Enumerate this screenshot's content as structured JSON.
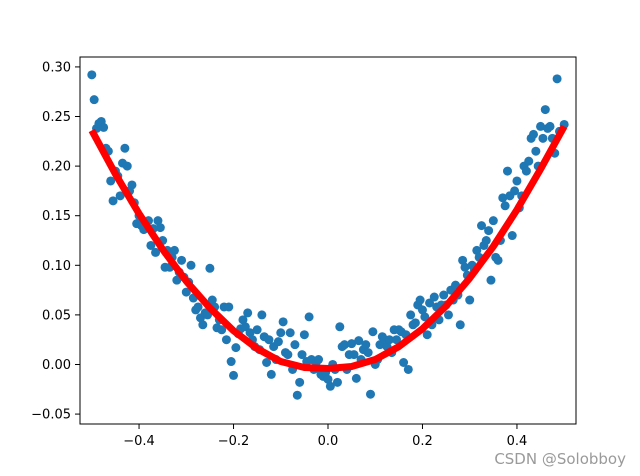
{
  "chart_data": {
    "type": "scatter",
    "title": "",
    "xlabel": "",
    "ylabel": "",
    "xlim": [
      -0.525,
      0.525
    ],
    "ylim": [
      -0.06,
      0.31
    ],
    "grid": false,
    "x_ticks": [
      -0.4,
      -0.2,
      0.0,
      0.2,
      0.4
    ],
    "x_tick_labels": [
      "−0.4",
      "−0.2",
      "0.0",
      "0.2",
      "0.4"
    ],
    "y_ticks": [
      -0.05,
      0.0,
      0.05,
      0.1,
      0.15,
      0.2,
      0.25,
      0.3
    ],
    "y_tick_labels": [
      "−0.05",
      "0.00",
      "0.05",
      "0.10",
      "0.15",
      "0.20",
      "0.25",
      "0.30"
    ],
    "series": [
      {
        "kind": "scatter",
        "color": "#1f77b4",
        "points": [
          [
            -0.5,
            0.292
          ],
          [
            -0.495,
            0.267
          ],
          [
            -0.49,
            0.238
          ],
          [
            -0.485,
            0.243
          ],
          [
            -0.48,
            0.245
          ],
          [
            -0.475,
            0.239
          ],
          [
            -0.47,
            0.218
          ],
          [
            -0.465,
            0.215
          ],
          [
            -0.46,
            0.185
          ],
          [
            -0.455,
            0.165
          ],
          [
            -0.45,
            0.195
          ],
          [
            -0.445,
            0.19
          ],
          [
            -0.44,
            0.17
          ],
          [
            -0.435,
            0.203
          ],
          [
            -0.43,
            0.218
          ],
          [
            -0.425,
            0.2
          ],
          [
            -0.42,
            0.175
          ],
          [
            -0.415,
            0.181
          ],
          [
            -0.41,
            0.163
          ],
          [
            -0.405,
            0.142
          ],
          [
            -0.4,
            0.15
          ],
          [
            -0.395,
            0.14
          ],
          [
            -0.39,
            0.136
          ],
          [
            -0.385,
            0.14
          ],
          [
            -0.38,
            0.145
          ],
          [
            -0.375,
            0.12
          ],
          [
            -0.37,
            0.137
          ],
          [
            -0.365,
            0.113
          ],
          [
            -0.36,
            0.145
          ],
          [
            -0.355,
            0.138
          ],
          [
            -0.35,
            0.125
          ],
          [
            -0.345,
            0.098
          ],
          [
            -0.34,
            0.115
          ],
          [
            -0.335,
            0.098
          ],
          [
            -0.33,
            0.108
          ],
          [
            -0.325,
            0.115
          ],
          [
            -0.32,
            0.085
          ],
          [
            -0.315,
            0.093
          ],
          [
            -0.31,
            0.105
          ],
          [
            -0.305,
            0.088
          ],
          [
            -0.3,
            0.073
          ],
          [
            -0.295,
            0.083
          ],
          [
            -0.29,
            0.1
          ],
          [
            -0.285,
            0.067
          ],
          [
            -0.28,
            0.055
          ],
          [
            -0.275,
            0.058
          ],
          [
            -0.27,
            0.047
          ],
          [
            -0.265,
            0.04
          ],
          [
            -0.26,
            0.052
          ],
          [
            -0.255,
            0.05
          ],
          [
            -0.25,
            0.097
          ],
          [
            -0.245,
            0.065
          ],
          [
            -0.24,
            0.058
          ],
          [
            -0.235,
            0.037
          ],
          [
            -0.23,
            0.045
          ],
          [
            -0.225,
            0.035
          ],
          [
            -0.22,
            0.058
          ],
          [
            -0.215,
            0.025
          ],
          [
            -0.21,
            0.058
          ],
          [
            -0.205,
            0.003
          ],
          [
            -0.2,
            -0.011
          ],
          [
            -0.195,
            0.017
          ],
          [
            -0.19,
            0.031
          ],
          [
            -0.185,
            0.036
          ],
          [
            -0.18,
            0.045
          ],
          [
            -0.175,
            0.038
          ],
          [
            -0.17,
            0.052
          ],
          [
            -0.165,
            0.032
          ],
          [
            -0.16,
            0.025
          ],
          [
            -0.155,
            0.018
          ],
          [
            -0.15,
            0.035
          ],
          [
            -0.145,
            0.015
          ],
          [
            -0.14,
            0.05
          ],
          [
            -0.135,
            0.028
          ],
          [
            -0.13,
            0.002
          ],
          [
            -0.125,
            0.025
          ],
          [
            -0.12,
            -0.01
          ],
          [
            -0.115,
            0.018
          ],
          [
            -0.11,
            0.005
          ],
          [
            -0.105,
            0.023
          ],
          [
            -0.1,
            0.032
          ],
          [
            -0.095,
            0.043
          ],
          [
            -0.09,
            0.012
          ],
          [
            -0.085,
            0.01
          ],
          [
            -0.08,
            0.032
          ],
          [
            -0.075,
            -0.005
          ],
          [
            -0.07,
            0.02
          ],
          [
            -0.065,
            -0.031
          ],
          [
            -0.06,
            -0.018
          ],
          [
            -0.055,
            0.01
          ],
          [
            -0.05,
            0.03
          ],
          [
            -0.045,
            0.003
          ],
          [
            -0.04,
            0.048
          ],
          [
            -0.035,
            0.005
          ],
          [
            -0.03,
            -0.005
          ],
          [
            -0.025,
            0.002
          ],
          [
            -0.02,
            0.005
          ],
          [
            -0.015,
            -0.01
          ],
          [
            -0.01,
            -0.012
          ],
          [
            -0.005,
            -0.008
          ],
          [
            0.0,
            -0.015
          ],
          [
            0.005,
            -0.022
          ],
          [
            0.01,
            0.0
          ],
          [
            0.015,
            -0.005
          ],
          [
            0.02,
            -0.018
          ],
          [
            0.025,
            0.038
          ],
          [
            0.03,
            0.018
          ],
          [
            0.035,
            0.02
          ],
          [
            0.04,
            -0.005
          ],
          [
            0.045,
            0.01
          ],
          [
            0.05,
            0.021
          ],
          [
            0.055,
            0.01
          ],
          [
            0.06,
            -0.014
          ],
          [
            0.065,
            0.024
          ],
          [
            0.07,
            0.005
          ],
          [
            0.075,
            0.015
          ],
          [
            0.08,
            0.02
          ],
          [
            0.085,
            0.012
          ],
          [
            0.09,
            -0.03
          ],
          [
            0.095,
            0.033
          ],
          [
            0.1,
            0.0
          ],
          [
            0.105,
            0.005
          ],
          [
            0.11,
            0.02
          ],
          [
            0.115,
            0.028
          ],
          [
            0.12,
            0.025
          ],
          [
            0.125,
            0.018
          ],
          [
            0.13,
            0.025
          ],
          [
            0.135,
            0.012
          ],
          [
            0.14,
            0.035
          ],
          [
            0.145,
            0.025
          ],
          [
            0.15,
            0.035
          ],
          [
            0.155,
            0.033
          ],
          [
            0.16,
            0.002
          ],
          [
            0.165,
            0.03
          ],
          [
            0.17,
            -0.005
          ],
          [
            0.175,
            0.05
          ],
          [
            0.18,
            0.04
          ],
          [
            0.185,
            0.042
          ],
          [
            0.19,
            0.06
          ],
          [
            0.195,
            0.065
          ],
          [
            0.2,
            0.055
          ],
          [
            0.205,
            0.048
          ],
          [
            0.21,
            0.03
          ],
          [
            0.215,
            0.062
          ],
          [
            0.22,
            0.04
          ],
          [
            0.225,
            0.068
          ],
          [
            0.23,
            0.058
          ],
          [
            0.235,
            0.045
          ],
          [
            0.24,
            0.06
          ],
          [
            0.245,
            0.07
          ],
          [
            0.25,
            0.06
          ],
          [
            0.255,
            0.05
          ],
          [
            0.26,
            0.075
          ],
          [
            0.265,
            0.065
          ],
          [
            0.27,
            0.08
          ],
          [
            0.275,
            0.07
          ],
          [
            0.28,
            0.04
          ],
          [
            0.285,
            0.105
          ],
          [
            0.29,
            0.098
          ],
          [
            0.295,
            0.09
          ],
          [
            0.3,
            0.065
          ],
          [
            0.305,
            0.1
          ],
          [
            0.31,
            0.095
          ],
          [
            0.315,
            0.115
          ],
          [
            0.32,
            0.108
          ],
          [
            0.325,
            0.14
          ],
          [
            0.33,
            0.12
          ],
          [
            0.335,
            0.125
          ],
          [
            0.34,
            0.135
          ],
          [
            0.345,
            0.085
          ],
          [
            0.35,
            0.145
          ],
          [
            0.355,
            0.108
          ],
          [
            0.36,
            0.105
          ],
          [
            0.365,
            0.125
          ],
          [
            0.37,
            0.168
          ],
          [
            0.375,
            0.16
          ],
          [
            0.38,
            0.195
          ],
          [
            0.385,
            0.17
          ],
          [
            0.39,
            0.13
          ],
          [
            0.395,
            0.175
          ],
          [
            0.4,
            0.185
          ],
          [
            0.405,
            0.158
          ],
          [
            0.41,
            0.17
          ],
          [
            0.415,
            0.2
          ],
          [
            0.42,
            0.195
          ],
          [
            0.425,
            0.205
          ],
          [
            0.43,
            0.228
          ],
          [
            0.435,
            0.232
          ],
          [
            0.44,
            0.215
          ],
          [
            0.445,
            0.2
          ],
          [
            0.45,
            0.24
          ],
          [
            0.455,
            0.228
          ],
          [
            0.46,
            0.257
          ],
          [
            0.465,
            0.238
          ],
          [
            0.47,
            0.24
          ],
          [
            0.475,
            0.228
          ],
          [
            0.48,
            0.213
          ],
          [
            0.485,
            0.288
          ],
          [
            0.49,
            0.235
          ],
          [
            0.5,
            0.242
          ]
        ]
      },
      {
        "kind": "line",
        "color": "#ff0000",
        "fit": "quadratic",
        "x": [
          -0.5,
          -0.45,
          -0.4,
          -0.35,
          -0.3,
          -0.25,
          -0.2,
          -0.15,
          -0.1,
          -0.05,
          0.0,
          0.05,
          0.1,
          0.15,
          0.2,
          0.25,
          0.3,
          0.35,
          0.4,
          0.45,
          0.5
        ],
        "y": [
          0.236,
          0.192,
          0.152,
          0.116,
          0.084,
          0.057,
          0.034,
          0.016,
          0.003,
          -0.003,
          -0.004,
          -0.002,
          0.005,
          0.018,
          0.036,
          0.059,
          0.087,
          0.119,
          0.156,
          0.197,
          0.24
        ]
      }
    ]
  },
  "watermark": "CSDN @Solobboy"
}
